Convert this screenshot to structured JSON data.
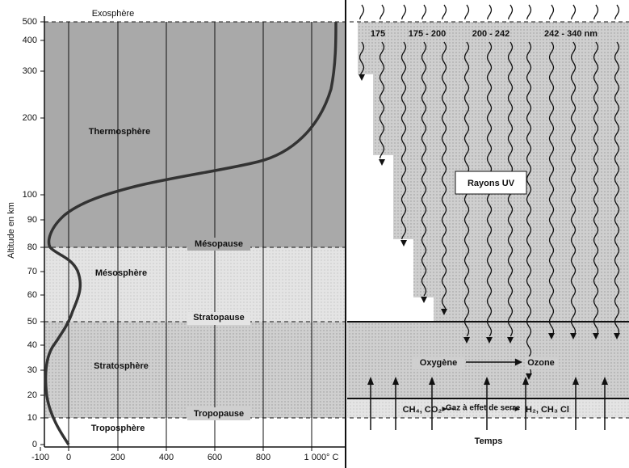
{
  "left_panel": {
    "y_axis_title": "Altitude en km",
    "y_ticks": [
      "500",
      "400",
      "300",
      "200",
      "100",
      "90",
      "80",
      "70",
      "60",
      "50",
      "40",
      "30",
      "20",
      "10",
      "0"
    ],
    "x_ticks": [
      "-100",
      "0",
      "200",
      "400",
      "600",
      "800",
      "1 000° C"
    ],
    "layers": {
      "exosphere": "Exosphère",
      "thermosphere": "Thermosphère",
      "mesopause": "Mésopause",
      "mesosphere": "Mésosphère",
      "stratopause": "Stratopause",
      "stratosphere": "Stratosphère",
      "tropopause": "Tropopause",
      "troposphere": "Troposphère"
    }
  },
  "right_panel": {
    "wavelengths": [
      "175",
      "175 - 200",
      "200 - 242",
      "242 - 340 nm"
    ],
    "uv_label": "Rayons UV",
    "oxygen": "Oxygène",
    "ozone": "Ozone",
    "gases_left": "CH₄, CO₂",
    "gases_middle": "Gaz à effet de serre",
    "gases_right": "H₂, CH₃ Cl",
    "time": "Temps"
  }
}
